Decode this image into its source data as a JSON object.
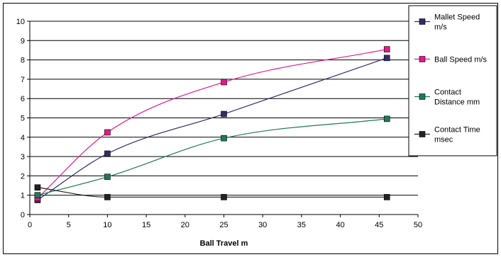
{
  "chart_data": {
    "type": "line",
    "xlabel": "Ball Travel m",
    "ylabel": "",
    "xlim": [
      0,
      50
    ],
    "ylim": [
      0,
      10
    ],
    "xticks": [
      0,
      5,
      10,
      15,
      20,
      25,
      30,
      35,
      40,
      45,
      50
    ],
    "yticks": [
      0,
      1,
      2,
      3,
      4,
      5,
      6,
      7,
      8,
      9,
      10
    ],
    "grid": "horizontal",
    "legend_position": "right",
    "series": [
      {
        "name": "Mallet Speed m/s",
        "color": "#2e2e6e",
        "points": [
          [
            1,
            0.75
          ],
          [
            10,
            3.15
          ],
          [
            25,
            5.2
          ],
          [
            46,
            8.1
          ]
        ]
      },
      {
        "name": "Ball Speed m/s",
        "color": "#e6198c",
        "points": [
          [
            1,
            0.85
          ],
          [
            10,
            4.25
          ],
          [
            25,
            6.85
          ],
          [
            46,
            8.55
          ]
        ]
      },
      {
        "name": "Contact Distance mm",
        "color": "#1f7a55",
        "points": [
          [
            1,
            1.0
          ],
          [
            10,
            1.95
          ],
          [
            25,
            3.95
          ],
          [
            46,
            4.95
          ]
        ]
      },
      {
        "name": "Contact Time msec",
        "color": "#222222",
        "points": [
          [
            1,
            1.4
          ],
          [
            10,
            0.9
          ],
          [
            25,
            0.9
          ],
          [
            46,
            0.9
          ]
        ]
      }
    ]
  }
}
